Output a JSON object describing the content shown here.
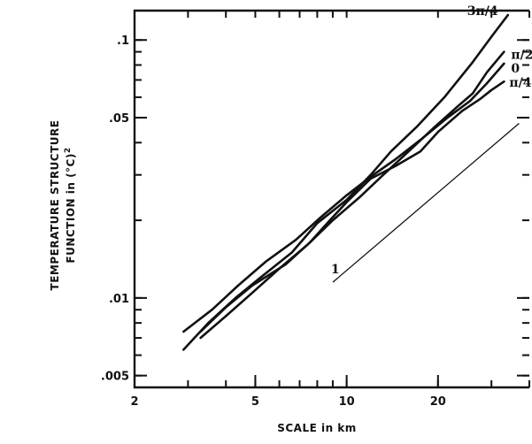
{
  "chart_data": {
    "type": "line",
    "xlabel": "SCALE in km",
    "ylabel_line1": "TEMPERATURE STRUCTURE",
    "ylabel_line2": "FUNCTION in (°C)",
    "ylabel_sup": "2",
    "x_scale": "log",
    "y_scale": "log",
    "xlim": [
      2,
      40
    ],
    "ylim": [
      0.0045,
      0.13
    ],
    "x_ticks": [
      {
        "value": 2,
        "label": "2"
      },
      {
        "value": 5,
        "label": "5"
      },
      {
        "value": 10,
        "label": "10"
      },
      {
        "value": 20,
        "label": "20"
      }
    ],
    "y_ticks": [
      {
        "value": 0.005,
        "label": ".005"
      },
      {
        "value": 0.01,
        "label": ".01"
      },
      {
        "value": 0.05,
        "label": ".05"
      },
      {
        "value": 0.1,
        "label": ".1"
      }
    ],
    "series": [
      {
        "name": "3π/4",
        "points": [
          [
            2.9,
            0.0063
          ],
          [
            3.5,
            0.008
          ],
          [
            4.3,
            0.01
          ],
          [
            5.2,
            0.012
          ],
          [
            6.6,
            0.015
          ],
          [
            8.0,
            0.0195
          ],
          [
            10.0,
            0.024
          ],
          [
            12.0,
            0.03
          ],
          [
            14.0,
            0.037
          ],
          [
            17.0,
            0.046
          ],
          [
            21.0,
            0.06
          ],
          [
            26.0,
            0.082
          ],
          [
            30.0,
            0.103
          ],
          [
            34.0,
            0.125
          ]
        ]
      },
      {
        "name": "π/2",
        "points": [
          [
            3.3,
            0.007
          ],
          [
            4.0,
            0.0085
          ],
          [
            4.9,
            0.0105
          ],
          [
            6.0,
            0.013
          ],
          [
            7.4,
            0.016
          ],
          [
            9.0,
            0.02
          ],
          [
            11.0,
            0.0245
          ],
          [
            13.0,
            0.0295
          ],
          [
            16.0,
            0.037
          ],
          [
            19.5,
            0.046
          ],
          [
            23.5,
            0.056
          ],
          [
            26.0,
            0.062
          ],
          [
            29.0,
            0.075
          ],
          [
            33.0,
            0.09
          ]
        ]
      },
      {
        "name": "0",
        "points": [
          [
            2.9,
            0.0074
          ],
          [
            3.6,
            0.009
          ],
          [
            4.4,
            0.0112
          ],
          [
            5.4,
            0.0138
          ],
          [
            6.8,
            0.0168
          ],
          [
            8.2,
            0.0205
          ],
          [
            10.0,
            0.025
          ],
          [
            12.0,
            0.0295
          ],
          [
            14.5,
            0.0345
          ],
          [
            17.5,
            0.041
          ],
          [
            21.5,
            0.05
          ],
          [
            25.5,
            0.058
          ],
          [
            29.0,
            0.068
          ],
          [
            33.0,
            0.081
          ]
        ]
      },
      {
        "name": "π/4",
        "points": [
          [
            3.3,
            0.0074
          ],
          [
            4.0,
            0.0092
          ],
          [
            4.9,
            0.0112
          ],
          [
            6.3,
            0.0135
          ],
          [
            7.6,
            0.0165
          ],
          [
            8.8,
            0.02
          ],
          [
            10.0,
            0.0235
          ],
          [
            12.0,
            0.029
          ],
          [
            14.5,
            0.0325
          ],
          [
            17.5,
            0.037
          ],
          [
            20.0,
            0.044
          ],
          [
            24.0,
            0.053
          ],
          [
            27.5,
            0.059
          ],
          [
            30.0,
            0.064
          ],
          [
            33.0,
            0.069
          ]
        ]
      }
    ],
    "reference_line": {
      "label": "1",
      "points": [
        [
          9.0,
          0.0115
        ],
        [
          37.0,
          0.0475
        ]
      ]
    }
  }
}
